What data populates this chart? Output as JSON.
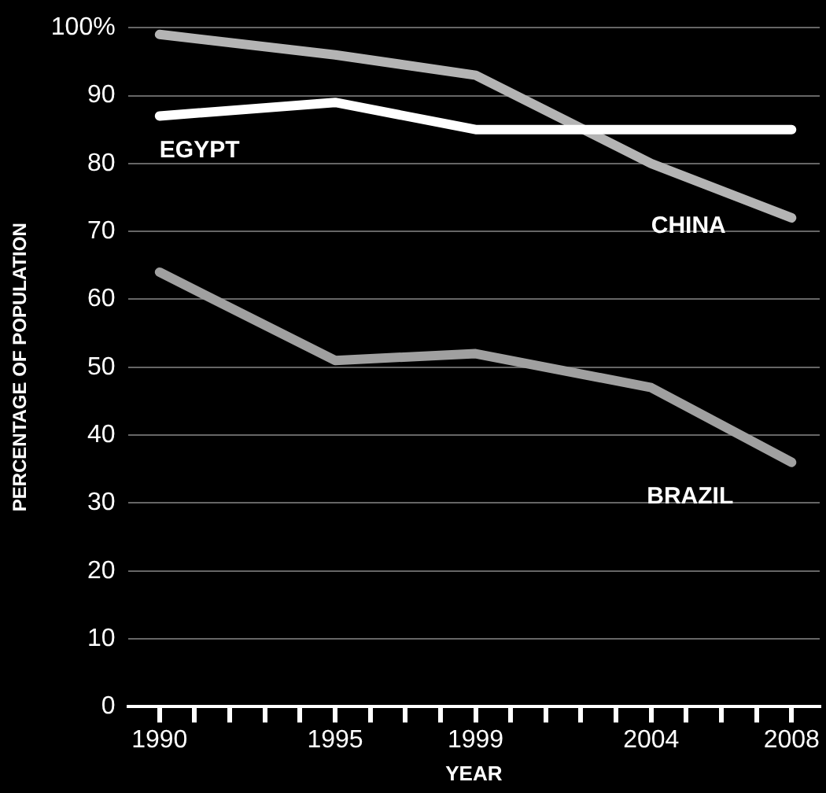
{
  "chart_data": {
    "type": "line",
    "xlabel": "YEAR",
    "ylabel": "PERCENTAGE OF POPULATION",
    "x": [
      1990,
      1995,
      1999,
      2004,
      2008
    ],
    "series": [
      {
        "name": "EGYPT",
        "color": "#ffffff",
        "values": [
          87,
          89,
          85,
          85,
          85
        ]
      },
      {
        "name": "CHINA",
        "color": "#b4b4b4",
        "values": [
          99,
          96,
          93,
          80,
          72
        ]
      },
      {
        "name": "BRAZIL",
        "color": "#a0a0a0",
        "values": [
          64,
          51,
          52,
          47,
          36
        ]
      }
    ],
    "xlim": [
      1989.1,
      2008.8
    ],
    "xticks": [
      1990,
      {
        "value": 1991,
        "label": null
      },
      {
        "value": 1992,
        "label": null
      },
      {
        "value": 1993,
        "label": null
      },
      {
        "value": 1994,
        "label": null
      },
      1995,
      {
        "value": 1996,
        "label": null
      },
      {
        "value": 1997,
        "label": null
      },
      {
        "value": 1998,
        "label": null
      },
      1999,
      {
        "value": 2000,
        "label": null
      },
      {
        "value": 2001,
        "label": null
      },
      {
        "value": 2002,
        "label": null
      },
      {
        "value": 2003,
        "label": null
      },
      2004,
      {
        "value": 2005,
        "label": null
      },
      {
        "value": 2006,
        "label": null
      },
      {
        "value": 2007,
        "label": null
      },
      2008
    ],
    "ylim": [
      0,
      100
    ],
    "yticks": [
      0,
      10,
      20,
      30,
      40,
      50,
      60,
      70,
      80,
      90,
      {
        "value": 100,
        "label": "100%"
      }
    ],
    "grid": "y",
    "legend": false,
    "marker": "none",
    "line_style": "solid"
  }
}
